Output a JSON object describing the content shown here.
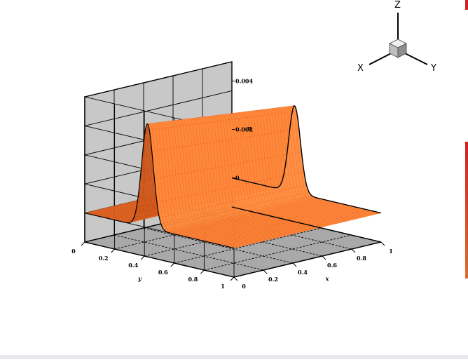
{
  "chart_data": {
    "type": "surface3d",
    "title": "",
    "xlabel": "x",
    "ylabel": "y",
    "zlabel": "u",
    "xlim": [
      0,
      1
    ],
    "ylim": [
      0,
      1
    ],
    "zlim": [
      -0.0012,
      0.0048
    ],
    "x_ticks": [
      "0",
      "0.2",
      "0.4",
      "0.6",
      "0.8",
      "1"
    ],
    "y_ticks": [
      "0",
      "0.2",
      "0.4",
      "0.6",
      "0.8",
      "1"
    ],
    "z_ticks": [
      "0",
      "0.002",
      "0.004"
    ],
    "grid": true,
    "surface": {
      "description_function": "gaussian ridge along y=0 edge and y=0.5",
      "peaks": [
        {
          "x": 0.02,
          "y": 0.42,
          "z": 0.0043
        },
        {
          "x": 0.98,
          "y": 0.42,
          "z": 0.0036
        }
      ],
      "ridge_y": 0.42,
      "ridge_width": 0.055,
      "ridge_height_start": 0.0043,
      "ridge_height_end": 0.0036
    },
    "triad": {
      "x_label": "X",
      "y_label": "Y",
      "z_label": "Z"
    }
  },
  "colors": {
    "surface": "#ff8a3d",
    "surface_dark": "#c9541a",
    "wall": "#c8c8c8",
    "floor": "#a9a9a9",
    "grid": "#000000",
    "edge_strip_red": "#d21f1f",
    "edge_strip_orange": "#e06c2a",
    "bottom_strip": "#e7e7ec"
  }
}
